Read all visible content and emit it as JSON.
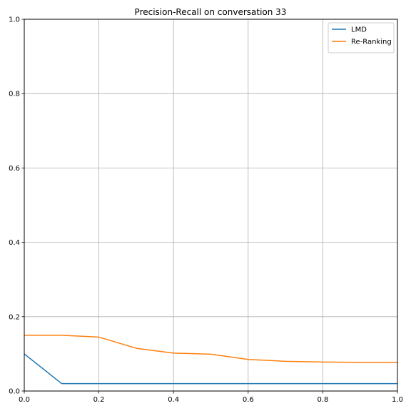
{
  "chart_data": {
    "type": "line",
    "title": "Precision-Recall on conversation 33",
    "xlabel": "",
    "ylabel": "",
    "xlim": [
      0,
      1
    ],
    "ylim": [
      0,
      1
    ],
    "xticks": [
      "0.0",
      "0.2",
      "0.4",
      "0.6",
      "0.8",
      "1.0"
    ],
    "yticks": [
      "0.0",
      "0.2",
      "0.4",
      "0.6",
      "0.8",
      "1.0"
    ],
    "grid": true,
    "legend": "top-right",
    "x": [
      0.0,
      0.1,
      0.2,
      0.3,
      0.4,
      0.5,
      0.6,
      0.7,
      0.8,
      0.9,
      1.0
    ],
    "series": [
      {
        "name": "LMD",
        "color": "#1f77b4",
        "values": [
          0.1,
          0.02,
          0.02,
          0.02,
          0.02,
          0.02,
          0.02,
          0.02,
          0.02,
          0.02,
          0.02
        ]
      },
      {
        "name": "Re-Ranking",
        "color": "#ff7f0e",
        "values": [
          0.15,
          0.15,
          0.145,
          0.115,
          0.102,
          0.099,
          0.085,
          0.08,
          0.078,
          0.077,
          0.077
        ]
      }
    ]
  }
}
